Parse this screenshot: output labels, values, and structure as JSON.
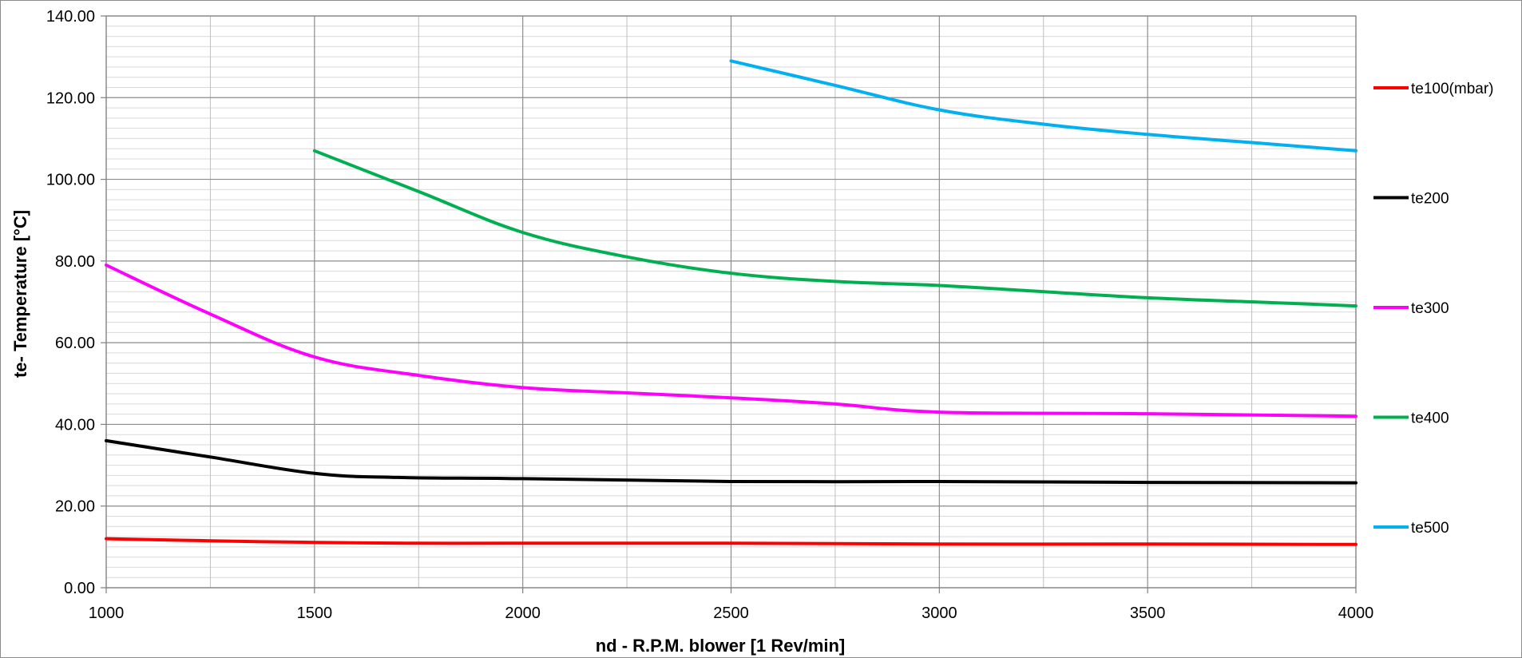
{
  "chart_data": {
    "type": "line",
    "title": "",
    "xlabel": "nd - R.P.M. blower [1 Rev/min]",
    "ylabel": "te- Temperature [°C]",
    "xlim": [
      1000,
      4000
    ],
    "ylim": [
      0,
      140
    ],
    "x_ticks": [
      "1000",
      "1500",
      "2000",
      "2500",
      "3000",
      "3500",
      "4000"
    ],
    "y_ticks": [
      "0.00",
      "20.00",
      "40.00",
      "60.00",
      "80.00",
      "100.00",
      "120.00",
      "140.00"
    ],
    "grid": true,
    "legend_position": "right",
    "series": [
      {
        "name": "te100(mbar)",
        "color": "#ff0000",
        "x": [
          1000,
          1250,
          1500,
          1750,
          2000,
          2500,
          3000,
          3500,
          4000
        ],
        "y": [
          12,
          11.5,
          11.1,
          10.9,
          10.9,
          10.9,
          10.7,
          10.7,
          10.6
        ]
      },
      {
        "name": "te200",
        "color": "#000000",
        "x": [
          1000,
          1250,
          1500,
          1700,
          2000,
          2500,
          3000,
          3500,
          4000
        ],
        "y": [
          36,
          32,
          28,
          27,
          26.7,
          26,
          26,
          25.8,
          25.7
        ]
      },
      {
        "name": "te300",
        "color": "#ff00ff",
        "x": [
          1000,
          1250,
          1500,
          1750,
          2000,
          2250,
          2500,
          2750,
          3000,
          3500,
          4000
        ],
        "y": [
          79,
          67,
          56.5,
          52,
          49,
          47.7,
          46.5,
          45,
          43,
          42.6,
          42
        ]
      },
      {
        "name": "te400",
        "color": "#00b050",
        "x": [
          1500,
          1750,
          2000,
          2250,
          2500,
          2750,
          3000,
          3250,
          3500,
          3750,
          4000
        ],
        "y": [
          107,
          97,
          87,
          81,
          77,
          75,
          74,
          72.5,
          71,
          70,
          69
        ]
      },
      {
        "name": "te500",
        "color": "#00b0f0",
        "x": [
          2500,
          2750,
          3000,
          3250,
          3500,
          3750,
          4000
        ],
        "y": [
          129,
          123,
          117,
          113.5,
          111,
          109,
          107
        ]
      }
    ]
  }
}
